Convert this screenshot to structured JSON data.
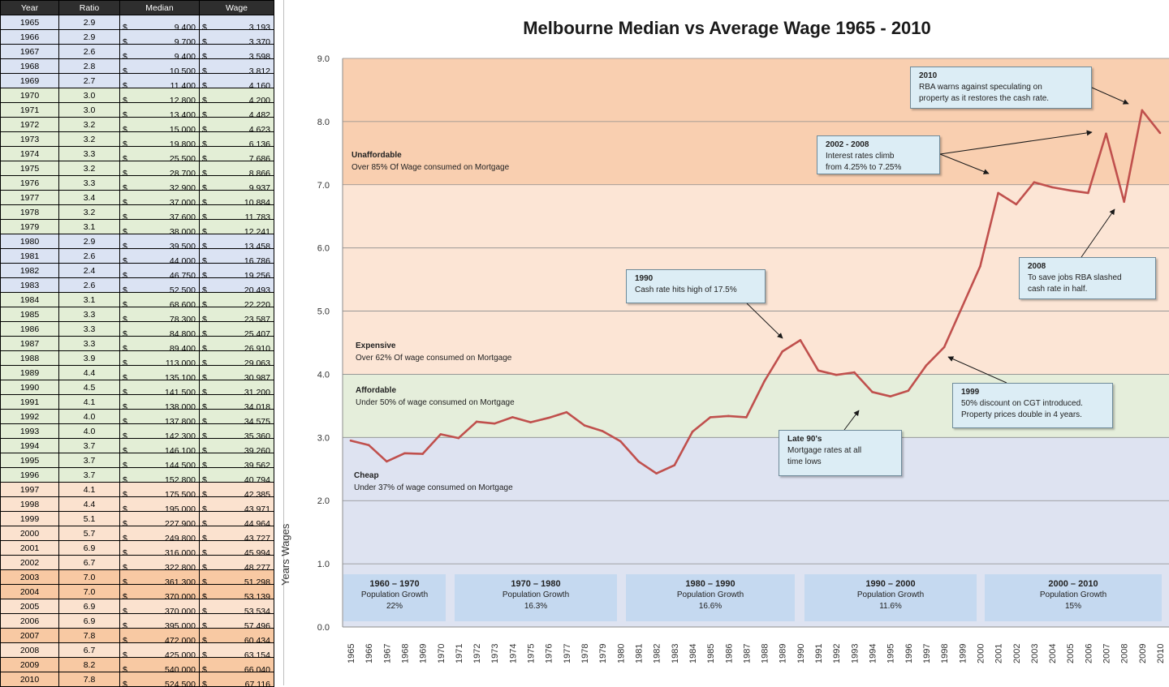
{
  "table": {
    "headers": [
      "Year",
      "Ratio",
      "Median",
      "Wage"
    ],
    "currency_symbol": "$",
    "band_colors": {
      "blue": "#dbe3f3",
      "green": "#e3eed6",
      "peach": "#fbe2cf",
      "orange": "#f8c9a3"
    },
    "rows": [
      {
        "year": "1965",
        "ratio": "2.9",
        "median": "9,400",
        "wage": "3,193",
        "band": "blue"
      },
      {
        "year": "1966",
        "ratio": "2.9",
        "median": "9,700",
        "wage": "3,370",
        "band": "blue"
      },
      {
        "year": "1967",
        "ratio": "2.6",
        "median": "9,400",
        "wage": "3,598",
        "band": "blue"
      },
      {
        "year": "1968",
        "ratio": "2.8",
        "median": "10,500",
        "wage": "3,812",
        "band": "blue"
      },
      {
        "year": "1969",
        "ratio": "2.7",
        "median": "11,400",
        "wage": "4,160",
        "band": "blue"
      },
      {
        "year": "1970",
        "ratio": "3.0",
        "median": "12,800",
        "wage": "4,200",
        "band": "green"
      },
      {
        "year": "1971",
        "ratio": "3.0",
        "median": "13,400",
        "wage": "4,482",
        "band": "green"
      },
      {
        "year": "1972",
        "ratio": "3.2",
        "median": "15,000",
        "wage": "4,623",
        "band": "green"
      },
      {
        "year": "1973",
        "ratio": "3.2",
        "median": "19,800",
        "wage": "6,136",
        "band": "green"
      },
      {
        "year": "1974",
        "ratio": "3.3",
        "median": "25,500",
        "wage": "7,686",
        "band": "green"
      },
      {
        "year": "1975",
        "ratio": "3.2",
        "median": "28,700",
        "wage": "8,866",
        "band": "green"
      },
      {
        "year": "1976",
        "ratio": "3.3",
        "median": "32,900",
        "wage": "9,937",
        "band": "green"
      },
      {
        "year": "1977",
        "ratio": "3.4",
        "median": "37,000",
        "wage": "10,884",
        "band": "green"
      },
      {
        "year": "1978",
        "ratio": "3.2",
        "median": "37,600",
        "wage": "11,783",
        "band": "green"
      },
      {
        "year": "1979",
        "ratio": "3.1",
        "median": "38,000",
        "wage": "12,241",
        "band": "green"
      },
      {
        "year": "1980",
        "ratio": "2.9",
        "median": "39,500",
        "wage": "13,458",
        "band": "blue"
      },
      {
        "year": "1981",
        "ratio": "2.6",
        "median": "44,000",
        "wage": "16,786",
        "band": "blue"
      },
      {
        "year": "1982",
        "ratio": "2.4",
        "median": "46,750",
        "wage": "19,256",
        "band": "blue"
      },
      {
        "year": "1983",
        "ratio": "2.6",
        "median": "52,500",
        "wage": "20,493",
        "band": "blue"
      },
      {
        "year": "1984",
        "ratio": "3.1",
        "median": "68,600",
        "wage": "22,220",
        "band": "green"
      },
      {
        "year": "1985",
        "ratio": "3.3",
        "median": "78,300",
        "wage": "23,587",
        "band": "green"
      },
      {
        "year": "1986",
        "ratio": "3.3",
        "median": "84,800",
        "wage": "25,407",
        "band": "green"
      },
      {
        "year": "1987",
        "ratio": "3.3",
        "median": "89,400",
        "wage": "26,910",
        "band": "green"
      },
      {
        "year": "1988",
        "ratio": "3.9",
        "median": "113,000",
        "wage": "29,063",
        "band": "green"
      },
      {
        "year": "1989",
        "ratio": "4.4",
        "median": "135,100",
        "wage": "30,987",
        "band": "green"
      },
      {
        "year": "1990",
        "ratio": "4.5",
        "median": "141,500",
        "wage": "31,200",
        "band": "green"
      },
      {
        "year": "1991",
        "ratio": "4.1",
        "median": "138,000",
        "wage": "34,018",
        "band": "green"
      },
      {
        "year": "1992",
        "ratio": "4.0",
        "median": "137,800",
        "wage": "34,575",
        "band": "green"
      },
      {
        "year": "1993",
        "ratio": "4.0",
        "median": "142,300",
        "wage": "35,360",
        "band": "green"
      },
      {
        "year": "1994",
        "ratio": "3.7",
        "median": "146,100",
        "wage": "39,260",
        "band": "green"
      },
      {
        "year": "1995",
        "ratio": "3.7",
        "median": "144,500",
        "wage": "39,562",
        "band": "green"
      },
      {
        "year": "1996",
        "ratio": "3.7",
        "median": "152,800",
        "wage": "40,794",
        "band": "green"
      },
      {
        "year": "1997",
        "ratio": "4.1",
        "median": "175,500",
        "wage": "42,385",
        "band": "peach"
      },
      {
        "year": "1998",
        "ratio": "4.4",
        "median": "195,000",
        "wage": "43,971",
        "band": "peach"
      },
      {
        "year": "1999",
        "ratio": "5.1",
        "median": "227,900",
        "wage": "44,964",
        "band": "peach"
      },
      {
        "year": "2000",
        "ratio": "5.7",
        "median": "249,800",
        "wage": "43,727",
        "band": "peach"
      },
      {
        "year": "2001",
        "ratio": "6.9",
        "median": "316,000",
        "wage": "45,994",
        "band": "peach"
      },
      {
        "year": "2002",
        "ratio": "6.7",
        "median": "322,800",
        "wage": "48,277",
        "band": "peach"
      },
      {
        "year": "2003",
        "ratio": "7.0",
        "median": "361,300",
        "wage": "51,298",
        "band": "orange"
      },
      {
        "year": "2004",
        "ratio": "7.0",
        "median": "370,000",
        "wage": "53,139",
        "band": "orange"
      },
      {
        "year": "2005",
        "ratio": "6.9",
        "median": "370,000",
        "wage": "53,534",
        "band": "peach"
      },
      {
        "year": "2006",
        "ratio": "6.9",
        "median": "395,000",
        "wage": "57,496",
        "band": "peach"
      },
      {
        "year": "2007",
        "ratio": "7.8",
        "median": "472,000",
        "wage": "60,434",
        "band": "orange"
      },
      {
        "year": "2008",
        "ratio": "6.7",
        "median": "425,000",
        "wage": "63,154",
        "band": "peach"
      },
      {
        "year": "2009",
        "ratio": "8.2",
        "median": "540,000",
        "wage": "66,040",
        "band": "orange"
      },
      {
        "year": "2010",
        "ratio": "7.8",
        "median": "524,500",
        "wage": "67,116",
        "band": "orange"
      }
    ]
  },
  "chart_data": {
    "type": "line",
    "title": "Melbourne Median vs Average Wage 1965 - 2010",
    "ylabel": "Years Wages",
    "xlabel": "",
    "ylim": [
      0,
      9
    ],
    "y_ticks": [
      "0.0",
      "1.0",
      "2.0",
      "3.0",
      "4.0",
      "5.0",
      "6.0",
      "7.0",
      "8.0",
      "9.0"
    ],
    "grid": true,
    "line_color": "#c0504d",
    "x": [
      "1965",
      "1966",
      "1967",
      "1968",
      "1969",
      "1970",
      "1971",
      "1972",
      "1973",
      "1974",
      "1975",
      "1976",
      "1977",
      "1978",
      "1979",
      "1980",
      "1981",
      "1982",
      "1983",
      "1984",
      "1985",
      "1986",
      "1987",
      "1988",
      "1989",
      "1990",
      "1991",
      "1992",
      "1993",
      "1994",
      "1995",
      "1996",
      "1997",
      "1998",
      "1999",
      "2000",
      "2001",
      "2002",
      "2003",
      "2004",
      "2005",
      "2006",
      "2007",
      "2008",
      "2009",
      "2010"
    ],
    "series": [
      {
        "name": "",
        "values": [
          2.95,
          2.88,
          2.62,
          2.75,
          2.74,
          3.05,
          2.99,
          3.25,
          3.22,
          3.32,
          3.24,
          3.31,
          3.4,
          3.19,
          3.1,
          2.94,
          2.62,
          2.43,
          2.56,
          3.09,
          3.32,
          3.34,
          3.32,
          3.89,
          4.36,
          4.54,
          4.06,
          3.99,
          4.03,
          3.72,
          3.65,
          3.74,
          4.14,
          4.43,
          5.07,
          5.71,
          6.87,
          6.69,
          7.04,
          6.96,
          6.91,
          6.87,
          7.81,
          6.73,
          8.18,
          7.82
        ]
      }
    ],
    "zones": [
      {
        "name": "Cheap",
        "desc": "Under 37% of wage consumed on Mortgage",
        "from": 0,
        "to": 3,
        "color": "#dee3f1"
      },
      {
        "name": "Affordable",
        "desc": "Under 50% of wage consumed on Mortgage",
        "from": 3,
        "to": 4,
        "color": "#e5eedb"
      },
      {
        "name": "Expensive",
        "desc": "Over 62% Of wage consumed on Mortgage",
        "from": 4,
        "to": 7,
        "color": "#fce5d5"
      },
      {
        "name": "Unaffordable",
        "desc": "Over 85% Of Wage consumed on Mortgage",
        "from": 7,
        "to": 9,
        "color": "#f9cfb0"
      }
    ],
    "annotations": [
      {
        "title": "2010",
        "lines": [
          "RBA warns against speculating on",
          "property as it restores the cash rate."
        ]
      },
      {
        "title": "2002 - 2008",
        "lines": [
          "Interest rates climb",
          "from 4.25% to 7.25%"
        ]
      },
      {
        "title": "1990",
        "lines": [
          "Cash rate hits high of 17.5%"
        ]
      },
      {
        "title": "2008",
        "lines": [
          "To save jobs RBA slashed",
          "cash rate in half."
        ]
      },
      {
        "title": "1999",
        "lines": [
          "50% discount on CGT introduced.",
          "Property prices double in 4 years."
        ]
      },
      {
        "title": "Late 90's",
        "lines": [
          "Mortgage rates at all",
          "time lows"
        ]
      }
    ],
    "decades": [
      {
        "range": "1960 – 1970",
        "label": "Population Growth",
        "value": "22%"
      },
      {
        "range": "1970 – 1980",
        "label": "Population Growth",
        "value": "16.3%"
      },
      {
        "range": "1980 – 1990",
        "label": "Population Growth",
        "value": "16.6%"
      },
      {
        "range": "1990 – 2000",
        "label": "Population Growth",
        "value": "11.6%"
      },
      {
        "range": "2000 – 2010",
        "label": "Population Growth",
        "value": "15%"
      }
    ]
  }
}
